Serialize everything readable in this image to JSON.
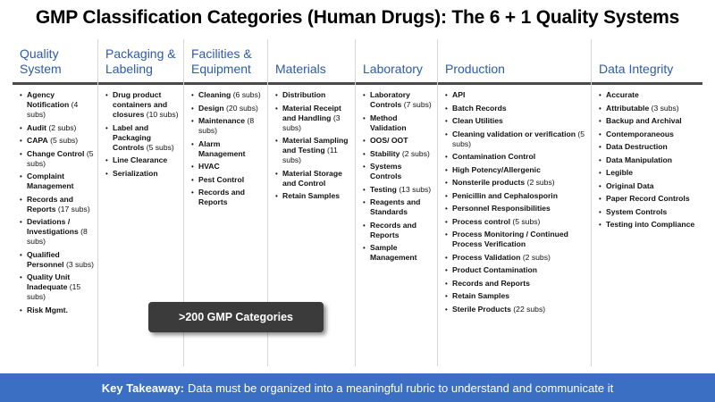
{
  "title": "GMP Classification Categories (Human Drugs): The 6 + 1 Quality Systems",
  "callout": ">200 GMP Categories",
  "footer": {
    "label": "Key Takeaway:",
    "text": "Data must be organized into a meaningful rubric to understand and communicate it"
  },
  "columns": [
    {
      "heading": "Quality System",
      "items": [
        {
          "name": "Agency Notification",
          "subs": "(4 subs)"
        },
        {
          "name": "Audit",
          "subs": "(2 subs)"
        },
        {
          "name": "CAPA",
          "subs": "(5 subs)"
        },
        {
          "name": "Change Control",
          "subs": "(5 subs)"
        },
        {
          "name": "Complaint Management",
          "subs": ""
        },
        {
          "name": "Records and Reports",
          "subs": "(17 subs)"
        },
        {
          "name": "Deviations / Investigations",
          "subs": "(8 subs)"
        },
        {
          "name": "Qualified Personnel",
          "subs": "(3 subs)"
        },
        {
          "name": "Quality Unit Inadequate",
          "subs": "(15 subs)"
        },
        {
          "name": "Risk Mgmt.",
          "subs": ""
        }
      ]
    },
    {
      "heading": "Packaging & Labeling",
      "items": [
        {
          "name": "Drug product containers and closures",
          "subs": "(10 subs)"
        },
        {
          "name": "Label and Packaging Controls",
          "subs": "(5 subs)"
        },
        {
          "name": "Line Clearance",
          "subs": ""
        },
        {
          "name": "Serialization",
          "subs": ""
        }
      ]
    },
    {
      "heading": "Facilities & Equipment",
      "items": [
        {
          "name": "Cleaning",
          "subs": "(6 subs)"
        },
        {
          "name": "Design",
          "subs": "(20 subs)"
        },
        {
          "name": "Maintenance",
          "subs": "(8 subs)"
        },
        {
          "name": "Alarm Management",
          "subs": ""
        },
        {
          "name": "HVAC",
          "subs": ""
        },
        {
          "name": "Pest Control",
          "subs": ""
        },
        {
          "name": "Records and Reports",
          "subs": ""
        }
      ]
    },
    {
      "heading": "Materials",
      "items": [
        {
          "name": "Distribution",
          "subs": ""
        },
        {
          "name": "Material Receipt and Handling",
          "subs": "(3 subs)"
        },
        {
          "name": "Material Sampling and Testing",
          "subs": "(11 subs)"
        },
        {
          "name": "Material Storage and Control",
          "subs": ""
        },
        {
          "name": "Retain Samples",
          "subs": ""
        }
      ]
    },
    {
      "heading": "Laboratory",
      "items": [
        {
          "name": "Laboratory Controls",
          "subs": "(7 subs)"
        },
        {
          "name": "Method Validation",
          "subs": ""
        },
        {
          "name": "OOS/ OOT",
          "subs": ""
        },
        {
          "name": "Stability",
          "subs": "(2 subs)"
        },
        {
          "name": "Systems Controls",
          "subs": ""
        },
        {
          "name": "Testing",
          "subs": "(13 subs)"
        },
        {
          "name": "Reagents and Standards",
          "subs": ""
        },
        {
          "name": "Records and Reports",
          "subs": ""
        },
        {
          "name": "Sample Management",
          "subs": ""
        }
      ]
    },
    {
      "heading": "Production",
      "items": [
        {
          "name": "API",
          "subs": ""
        },
        {
          "name": "Batch Records",
          "subs": ""
        },
        {
          "name": "Clean Utilities",
          "subs": ""
        },
        {
          "name": "Cleaning validation or verification",
          "subs": "(5 subs)"
        },
        {
          "name": "Contamination Control",
          "subs": ""
        },
        {
          "name": "High Potency/Allergenic",
          "subs": ""
        },
        {
          "name": "Nonsterile products",
          "subs": "(2 subs)"
        },
        {
          "name": "Penicillin and Cephalosporin",
          "subs": ""
        },
        {
          "name": "Personnel Responsibilities",
          "subs": ""
        },
        {
          "name": "Process control",
          "subs": "(5 subs)"
        },
        {
          "name": "Process Monitoring / Continued Process Verification",
          "subs": ""
        },
        {
          "name": "Process Validation",
          "subs": "(2 subs)"
        },
        {
          "name": "Product Contamination",
          "subs": ""
        },
        {
          "name": "Records and Reports",
          "subs": ""
        },
        {
          "name": "Retain Samples",
          "subs": ""
        },
        {
          "name": "Sterile Products",
          "subs": "(22 subs)"
        }
      ]
    },
    {
      "heading": "Data Integrity",
      "items": [
        {
          "name": "Accurate",
          "subs": ""
        },
        {
          "name": "Attributable",
          "subs": "(3 subs)"
        },
        {
          "name": "Backup and Archival",
          "subs": ""
        },
        {
          "name": "Contemporaneous",
          "subs": ""
        },
        {
          "name": "Data Destruction",
          "subs": ""
        },
        {
          "name": "Data Manipulation",
          "subs": ""
        },
        {
          "name": "Legible",
          "subs": ""
        },
        {
          "name": "Original Data",
          "subs": ""
        },
        {
          "name": "Paper Record Controls",
          "subs": ""
        },
        {
          "name": "System Controls",
          "subs": ""
        },
        {
          "name": "Testing into Compliance",
          "subs": ""
        }
      ]
    }
  ]
}
